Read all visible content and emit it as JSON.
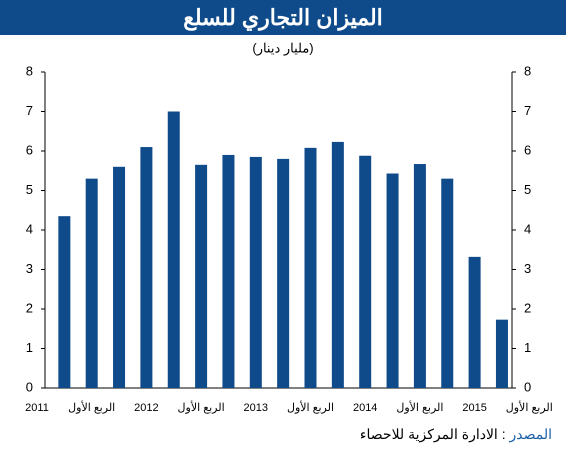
{
  "chart_data": {
    "type": "bar",
    "title": "الميزان التجاري للسلع",
    "subtitle": "(مليار دينار)",
    "categories": [
      "2011",
      null,
      "الربع الأول",
      null,
      "2012",
      null,
      "الربع الأول",
      null,
      "2013",
      null,
      "الربع الأول",
      null,
      "2014",
      null,
      "الربع الأول",
      null,
      "2015",
      null,
      "الربع الأول"
    ],
    "values": [
      null,
      4.35,
      5.3,
      5.6,
      6.1,
      7.0,
      5.65,
      5.9,
      5.85,
      5.8,
      6.08,
      6.23,
      5.88,
      5.43,
      5.67,
      5.3,
      3.32,
      1.73,
      null
    ],
    "color": "#0f4a8a",
    "ylim": [
      0,
      8
    ],
    "yticks": [
      0,
      1,
      2,
      3,
      4,
      5,
      6,
      7,
      8
    ],
    "grid": false,
    "source_label": "المصدر",
    "source_text": ": الادارة المركزية للاحصاء"
  }
}
